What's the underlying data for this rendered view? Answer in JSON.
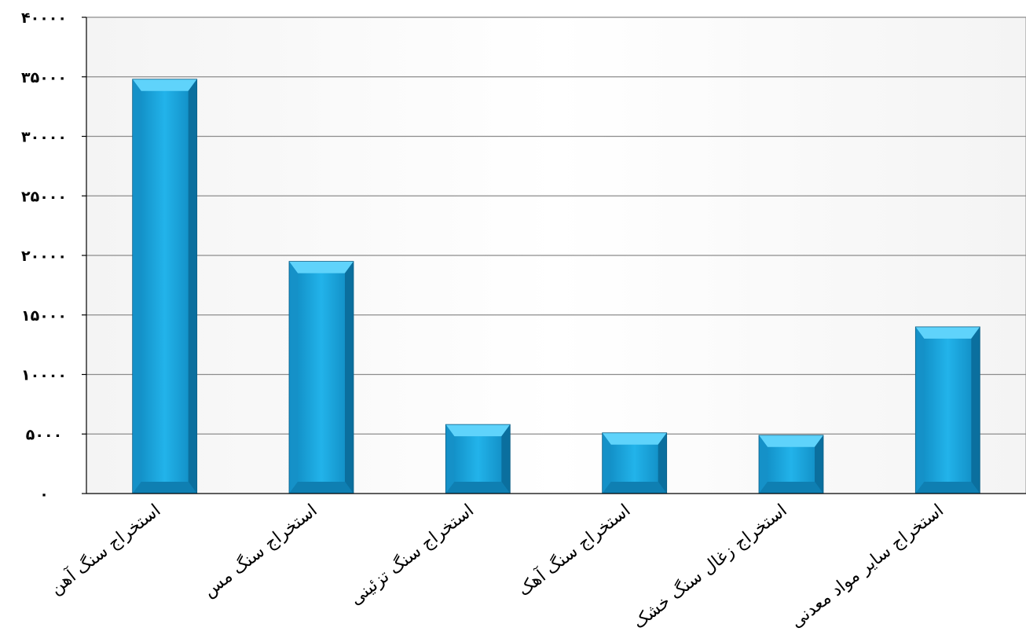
{
  "chart_data": {
    "type": "bar",
    "title": "",
    "xlabel": "",
    "ylabel": "",
    "categories": [
      "استخراج سنگ آهن",
      "استخراج سنگ مس",
      "استخراج سنگ تزئینی",
      "استخراج سنگ آهک",
      "استخراج زغال سنگ خشک",
      "استخراج سایر مواد معدنی"
    ],
    "values": [
      34800,
      19500,
      5800,
      5100,
      4900,
      14000
    ],
    "ylim": [
      0,
      40000
    ],
    "y_ticks": [
      0,
      5000,
      10000,
      15000,
      20000,
      25000,
      30000,
      35000,
      40000
    ],
    "y_tick_labels": [
      "۰",
      "۵۰۰۰",
      "۱۰۰۰۰",
      "۱۵۰۰۰",
      "۲۰۰۰۰",
      "۲۵۰۰۰",
      "۳۰۰۰۰",
      "۳۵۰۰۰",
      "۴۰۰۰۰"
    ],
    "grid": true,
    "legend": "none",
    "colors": {
      "bar": "#1aa7e0",
      "bar_light": "#5fd3fb",
      "bar_dark": "#0b6f9e",
      "grid": "#8c8c8c",
      "axis": "#000000"
    }
  }
}
